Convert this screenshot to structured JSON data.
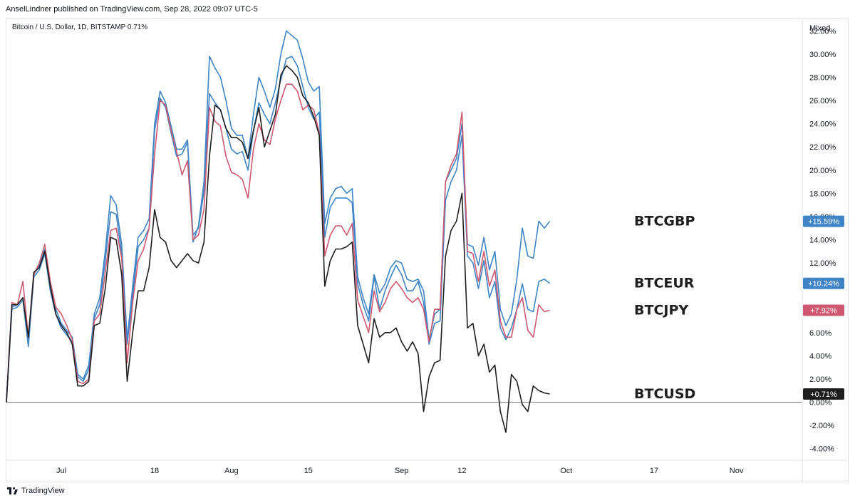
{
  "header": {
    "publisher_text": "AnselLindner published on TradingView.com, Sep 28, 2022 09:07 UTC-5"
  },
  "legend": {
    "symbol_text": "Bitcoin / U.S. Dollar, 1D, BITSTAMP  0.71%"
  },
  "scale_mode": "Mixed",
  "footer": {
    "brand": "TradingView"
  },
  "colors": {
    "blue": "#3e84c6",
    "red": "#cf5870",
    "black": "#1e1e1e",
    "axis_text": "#131722",
    "grid_line": "#b2b5be"
  },
  "chart_data": {
    "type": "line",
    "x_type": "date",
    "x_range": [
      "2022-06-21",
      "2022-11-13"
    ],
    "y_unit": "%",
    "ylim": [
      -5,
      33
    ],
    "y_ticks": [
      -4,
      -2,
      0,
      2,
      4,
      6,
      8,
      10,
      12,
      14,
      16,
      18,
      20,
      22,
      24,
      26,
      28,
      30,
      32
    ],
    "y_tick_labels": [
      "-4.00%",
      "-2.00%",
      "0.00%",
      "2.00%",
      "4.00%",
      "6.00%",
      "8.00%",
      "10.00%",
      "12.00%",
      "14.00%",
      "16.00%",
      "18.00%",
      "20.00%",
      "22.00%",
      "24.00%",
      "26.00%",
      "28.00%",
      "30.00%",
      "32.00%"
    ],
    "x_ticks": [
      {
        "date": "2022-07-01",
        "label": "Jul"
      },
      {
        "date": "2022-07-18",
        "label": "18"
      },
      {
        "date": "2022-08-01",
        "label": "Aug"
      },
      {
        "date": "2022-08-15",
        "label": "15"
      },
      {
        "date": "2022-09-01",
        "label": "Sep"
      },
      {
        "date": "2022-09-12",
        "label": "12"
      },
      {
        "date": "2022-10-01",
        "label": "Oct"
      },
      {
        "date": "2022-10-17",
        "label": "17"
      },
      {
        "date": "2022-11-01",
        "label": "Nov"
      }
    ],
    "baseline": 0,
    "grid": false,
    "dates": [
      "2022-06-21",
      "2022-06-22",
      "2022-06-23",
      "2022-06-24",
      "2022-06-25",
      "2022-06-26",
      "2022-06-27",
      "2022-06-28",
      "2022-06-29",
      "2022-06-30",
      "2022-07-01",
      "2022-07-02",
      "2022-07-03",
      "2022-07-04",
      "2022-07-05",
      "2022-07-06",
      "2022-07-07",
      "2022-07-08",
      "2022-07-09",
      "2022-07-10",
      "2022-07-11",
      "2022-07-12",
      "2022-07-13",
      "2022-07-14",
      "2022-07-15",
      "2022-07-16",
      "2022-07-17",
      "2022-07-18",
      "2022-07-19",
      "2022-07-20",
      "2022-07-21",
      "2022-07-22",
      "2022-07-23",
      "2022-07-24",
      "2022-07-25",
      "2022-07-26",
      "2022-07-27",
      "2022-07-28",
      "2022-07-29",
      "2022-07-30",
      "2022-07-31",
      "2022-08-01",
      "2022-08-02",
      "2022-08-03",
      "2022-08-04",
      "2022-08-05",
      "2022-08-06",
      "2022-08-07",
      "2022-08-08",
      "2022-08-09",
      "2022-08-10",
      "2022-08-11",
      "2022-08-12",
      "2022-08-13",
      "2022-08-14",
      "2022-08-15",
      "2022-08-16",
      "2022-08-17",
      "2022-08-18",
      "2022-08-19",
      "2022-08-20",
      "2022-08-21",
      "2022-08-22",
      "2022-08-23",
      "2022-08-24",
      "2022-08-25",
      "2022-08-26",
      "2022-08-27",
      "2022-08-28",
      "2022-08-29",
      "2022-08-30",
      "2022-08-31",
      "2022-09-01",
      "2022-09-02",
      "2022-09-03",
      "2022-09-04",
      "2022-09-05",
      "2022-09-06",
      "2022-09-07",
      "2022-09-08",
      "2022-09-09",
      "2022-09-10",
      "2022-09-11",
      "2022-09-12",
      "2022-09-13",
      "2022-09-14",
      "2022-09-15",
      "2022-09-16",
      "2022-09-17",
      "2022-09-18",
      "2022-09-19",
      "2022-09-20",
      "2022-09-21",
      "2022-09-22",
      "2022-09-23",
      "2022-09-24",
      "2022-09-25",
      "2022-09-26",
      "2022-09-27",
      "2022-09-28"
    ],
    "series": [
      {
        "name": "BTCGBP",
        "color": "#3e84c6",
        "last_value_label": "+15.59%",
        "values": [
          0,
          8.2,
          8.4,
          9.0,
          5.0,
          11.0,
          11.8,
          13.2,
          10.0,
          8.0,
          6.8,
          6.2,
          5.6,
          2.4,
          2.0,
          3.2,
          7.6,
          9.0,
          13.0,
          17.8,
          17.0,
          13.6,
          5.4,
          10.0,
          14.2,
          14.8,
          15.8,
          24.0,
          26.8,
          25.8,
          23.8,
          21.8,
          21.8,
          22.6,
          13.8,
          15.2,
          19.0,
          29.8,
          28.8,
          28.0,
          26.0,
          23.6,
          23.0,
          23.0,
          21.0,
          24.8,
          28.0,
          26.8,
          25.4,
          27.0,
          30.0,
          32.0,
          31.6,
          31.2,
          29.6,
          27.6,
          26.8,
          27.2,
          15.4,
          17.6,
          18.4,
          18.6,
          18.0,
          18.4,
          10.8,
          9.0,
          7.6,
          11.0,
          9.4,
          10.2,
          11.6,
          12.2,
          12.0,
          10.6,
          10.4,
          10.6,
          9.6,
          5.4,
          7.6,
          8.0,
          19.0,
          20.0,
          21.0,
          24.0,
          13.6,
          13.4,
          11.8,
          14.2,
          11.4,
          13.0,
          8.0,
          6.6,
          7.6,
          10.6,
          15.0,
          12.6,
          12.4,
          15.6,
          15.0,
          15.59
        ]
      },
      {
        "name": "BTCEUR",
        "color": "#3e84c6",
        "last_value_label": "+10.24%",
        "values": [
          0,
          8.0,
          8.2,
          8.8,
          4.8,
          10.8,
          11.4,
          12.8,
          9.6,
          7.6,
          6.4,
          5.8,
          5.2,
          2.2,
          1.8,
          2.8,
          7.2,
          8.4,
          12.2,
          16.4,
          16.2,
          12.8,
          5.0,
          9.2,
          13.4,
          14.0,
          15.0,
          23.4,
          26.2,
          25.4,
          23.2,
          21.2,
          21.4,
          22.4,
          14.4,
          15.0,
          18.2,
          26.6,
          25.8,
          25.2,
          23.6,
          21.8,
          21.4,
          21.6,
          20.0,
          23.4,
          25.8,
          24.8,
          24.0,
          25.8,
          27.8,
          29.6,
          29.8,
          29.0,
          27.2,
          25.4,
          24.4,
          25.0,
          14.2,
          16.8,
          17.6,
          17.6,
          17.6,
          17.2,
          10.2,
          8.4,
          7.0,
          10.8,
          8.0,
          9.6,
          10.8,
          11.8,
          11.0,
          9.6,
          9.6,
          10.4,
          8.6,
          5.0,
          6.8,
          7.0,
          17.4,
          19.0,
          20.0,
          23.0,
          12.6,
          12.0,
          9.8,
          12.2,
          9.0,
          10.4,
          6.4,
          5.4,
          6.4,
          8.0,
          10.2,
          8.0,
          7.8,
          10.4,
          10.6,
          10.24
        ]
      },
      {
        "name": "BTCJPY",
        "color": "#cf5870",
        "last_value_label": "+7.92%",
        "values": [
          0,
          8.6,
          8.4,
          10.4,
          5.6,
          11.0,
          12.0,
          13.6,
          10.4,
          8.2,
          7.6,
          6.6,
          5.4,
          1.8,
          1.6,
          2.0,
          7.0,
          7.6,
          11.2,
          14.8,
          15.0,
          12.4,
          3.4,
          8.6,
          12.2,
          13.2,
          15.0,
          21.4,
          26.0,
          25.6,
          23.4,
          21.6,
          19.6,
          20.8,
          14.0,
          14.4,
          16.6,
          25.4,
          24.2,
          23.8,
          21.2,
          19.8,
          19.6,
          19.2,
          17.6,
          21.8,
          24.0,
          22.6,
          22.2,
          24.4,
          26.0,
          27.4,
          27.4,
          26.8,
          25.2,
          25.6,
          25.2,
          23.2,
          12.6,
          14.4,
          15.2,
          15.2,
          14.4,
          15.4,
          8.8,
          7.4,
          6.0,
          9.6,
          7.8,
          8.6,
          9.8,
          10.4,
          9.8,
          9.0,
          8.6,
          9.0,
          8.0,
          5.2,
          8.0,
          8.0,
          19.0,
          20.4,
          21.4,
          25.0,
          13.0,
          12.8,
          10.4,
          13.0,
          10.0,
          11.4,
          7.0,
          5.6,
          5.6,
          8.0,
          9.0,
          6.2,
          5.6,
          8.4,
          7.8,
          7.92
        ]
      },
      {
        "name": "BTCUSD",
        "color": "#1e1e1e",
        "last_value_label": "+0.71%",
        "values": [
          0,
          8.4,
          8.4,
          9.0,
          5.6,
          11.2,
          11.6,
          13.0,
          10.0,
          7.6,
          6.6,
          6.0,
          5.0,
          1.4,
          1.4,
          1.8,
          6.6,
          6.8,
          9.8,
          14.2,
          14.0,
          11.0,
          1.8,
          6.0,
          9.6,
          9.6,
          11.6,
          16.6,
          14.2,
          13.8,
          12.2,
          11.6,
          12.2,
          12.8,
          12.2,
          12.0,
          13.8,
          21.2,
          25.6,
          25.2,
          23.6,
          22.8,
          22.8,
          22.4,
          21.0,
          23.4,
          25.4,
          22.0,
          23.4,
          24.8,
          28.2,
          29.0,
          28.6,
          28.0,
          26.4,
          25.8,
          24.6,
          23.0,
          10.0,
          12.2,
          13.2,
          13.2,
          13.4,
          13.8,
          6.6,
          5.0,
          3.4,
          7.2,
          5.6,
          6.0,
          6.0,
          6.4,
          5.2,
          4.4,
          5.2,
          4.2,
          -0.8,
          2.2,
          3.4,
          3.6,
          12.6,
          14.8,
          15.6,
          18.0,
          6.4,
          6.8,
          4.0,
          5.0,
          2.6,
          3.2,
          -0.8,
          -2.6,
          2.4,
          1.8,
          -0.2,
          -0.8,
          1.4,
          1.0,
          0.8,
          0.71
        ]
      }
    ],
    "annotations": [
      "BTCGBP",
      "BTCEUR",
      "BTCJPY",
      "BTCUSD"
    ]
  }
}
